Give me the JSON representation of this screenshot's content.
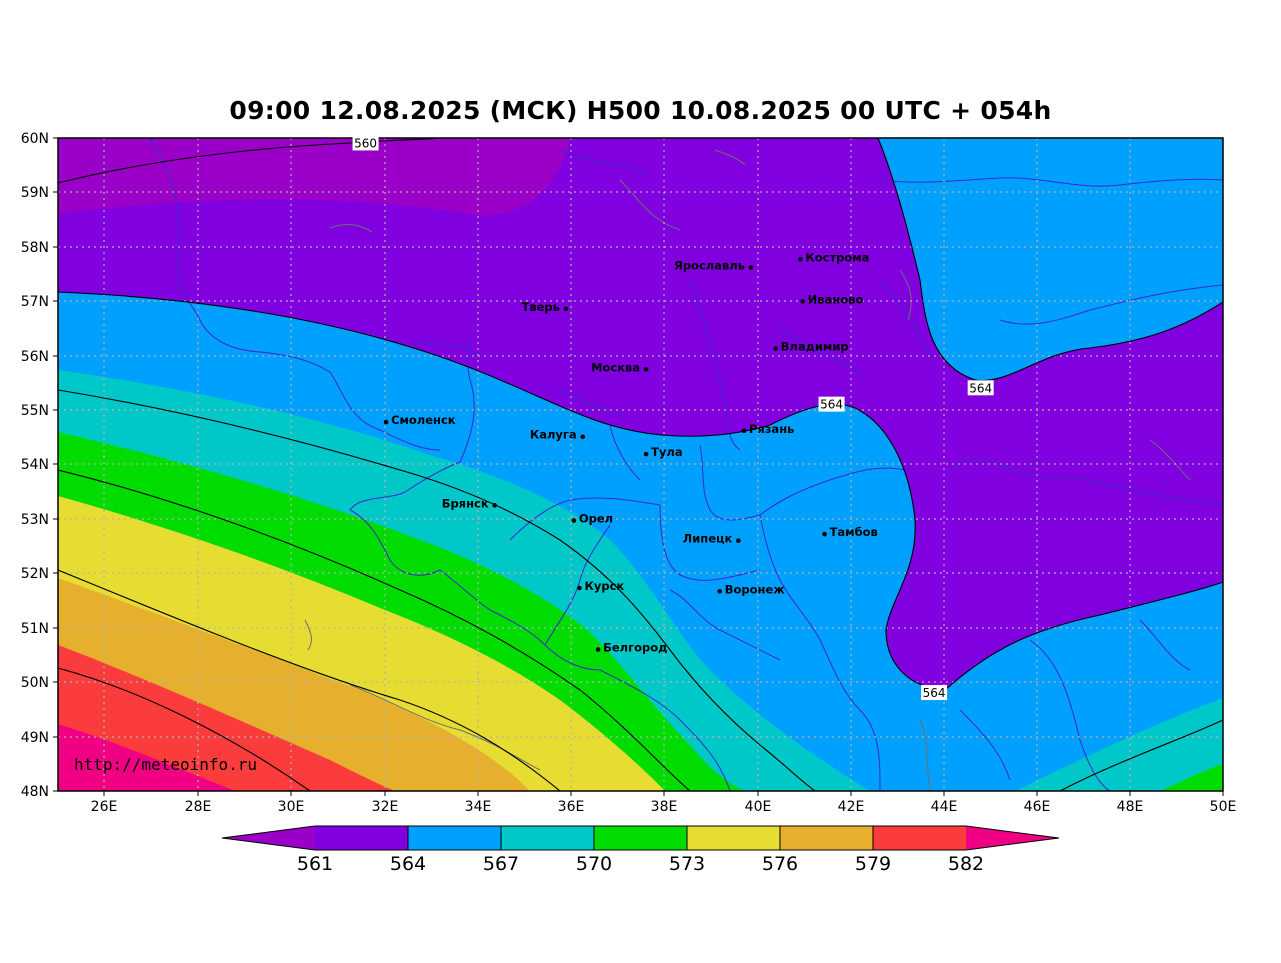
{
  "title": "09:00 12.08.2025 (МСК) H500  10.08.2025 00 UTC + 054h",
  "watermark": "http://meteoinfo.ru",
  "lat_labels": [
    "60N",
    "59N",
    "58N",
    "57N",
    "56N",
    "55N",
    "54N",
    "53N",
    "52N",
    "51N",
    "50N",
    "49N",
    "48N"
  ],
  "lon_labels": [
    "26E",
    "28E",
    "30E",
    "32E",
    "34E",
    "36E",
    "38E",
    "40E",
    "42E",
    "44E",
    "46E",
    "48E",
    "50E"
  ],
  "cities": [
    {
      "name": "Кострома",
      "lat": 57.77,
      "lon": 40.93,
      "label_side": "right"
    },
    {
      "name": "Ярославль",
      "lat": 57.62,
      "lon": 39.87,
      "label_side": "left"
    },
    {
      "name": "Иваново",
      "lat": 57.0,
      "lon": 40.98,
      "label_side": "right"
    },
    {
      "name": "Тверь",
      "lat": 56.86,
      "lon": 35.9,
      "label_side": "left"
    },
    {
      "name": "Владимир",
      "lat": 56.13,
      "lon": 40.4,
      "label_side": "right"
    },
    {
      "name": "Москва",
      "lat": 55.75,
      "lon": 37.62,
      "label_side": "left"
    },
    {
      "name": "Смоленск",
      "lat": 54.78,
      "lon": 32.04,
      "label_side": "right"
    },
    {
      "name": "Рязань",
      "lat": 54.62,
      "lon": 39.72,
      "label_side": "right"
    },
    {
      "name": "Калуга",
      "lat": 54.51,
      "lon": 36.26,
      "label_side": "left"
    },
    {
      "name": "Тула",
      "lat": 54.19,
      "lon": 37.62,
      "label_side": "right"
    },
    {
      "name": "Брянск",
      "lat": 53.25,
      "lon": 34.37,
      "label_side": "left"
    },
    {
      "name": "Орел",
      "lat": 52.97,
      "lon": 36.07,
      "label_side": "right"
    },
    {
      "name": "Тамбов",
      "lat": 52.72,
      "lon": 41.45,
      "label_side": "right"
    },
    {
      "name": "Липецк",
      "lat": 52.6,
      "lon": 39.6,
      "label_side": "left"
    },
    {
      "name": "Курск",
      "lat": 51.73,
      "lon": 36.19,
      "label_side": "right"
    },
    {
      "name": "Воронеж",
      "lat": 51.67,
      "lon": 39.2,
      "label_side": "right"
    },
    {
      "name": "Белгород",
      "lat": 50.6,
      "lon": 36.59,
      "label_side": "right"
    }
  ],
  "contour_labels": [
    {
      "text": "560",
      "lat": 59.9,
      "lon": 31.6
    },
    {
      "text": "564",
      "lat": 55.1,
      "lon": 41.6
    },
    {
      "text": "564",
      "lat": 55.4,
      "lon": 44.8
    },
    {
      "text": "564",
      "lat": 49.8,
      "lon": 43.8
    }
  ],
  "colorbar": {
    "labels": [
      "561",
      "564",
      "567",
      "570",
      "573",
      "576",
      "579",
      "582"
    ],
    "colors": [
      "#9a00c8",
      "#8000e0",
      "#00a0ff",
      "#00c8c8",
      "#00dc00",
      "#e6dc32",
      "#e6af2d",
      "#fa3c3c",
      "#f00082"
    ]
  },
  "colors": {
    "level_lt561": "#9a00c8",
    "level_561_564": "#8000e0",
    "level_564_567": "#00a0ff",
    "level_567_570": "#00c8c8",
    "level_570_573": "#00dc00",
    "level_573_576": "#e6dc32",
    "level_576_579": "#e6af2d",
    "level_579_582": "#fa3c3c",
    "level_gt582": "#f00082",
    "border": "#3c28c8",
    "grid": "#b4b4b4"
  }
}
